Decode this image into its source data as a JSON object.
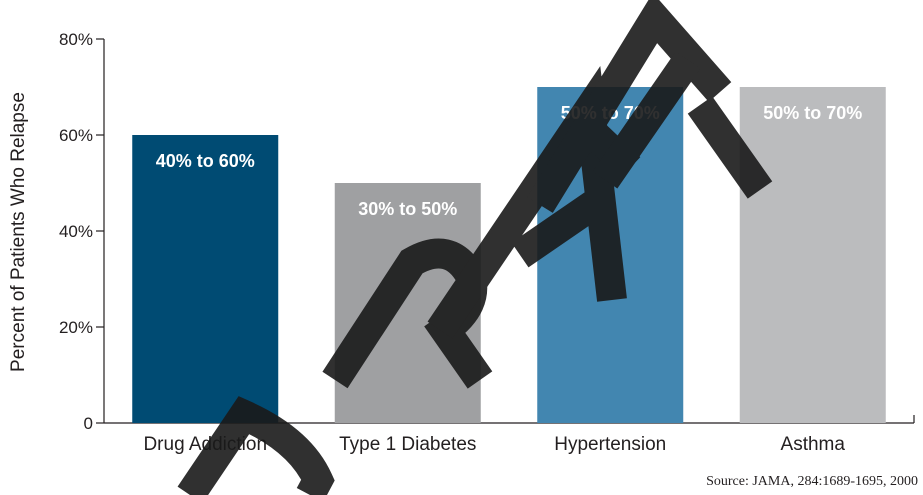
{
  "chart_data": {
    "type": "bar",
    "categories": [
      "Drug Addiction",
      "Type 1 Diabetes",
      "Hypertension",
      "Asthma"
    ],
    "values": [
      60,
      50,
      70,
      70
    ],
    "data_labels": [
      "40% to 60%",
      "30% to 50%",
      "50% to 70%",
      "50% to 70%"
    ],
    "bar_colors": [
      "#004b73",
      "#9fa0a2",
      "#4286b0",
      "#bbbcbe"
    ],
    "ylabel": "Percent of Patients Who Relapse",
    "yticks": [
      0,
      20,
      40,
      60,
      80
    ],
    "ytick_labels": [
      "0",
      "20%",
      "40%",
      "60%",
      "80%"
    ],
    "ylim": [
      0,
      80
    ],
    "grid": false,
    "source": "Source: JAMA, 284:1689-1695, 2000",
    "watermark": "DRAFT",
    "watermark_color": "#1a1a1a"
  }
}
